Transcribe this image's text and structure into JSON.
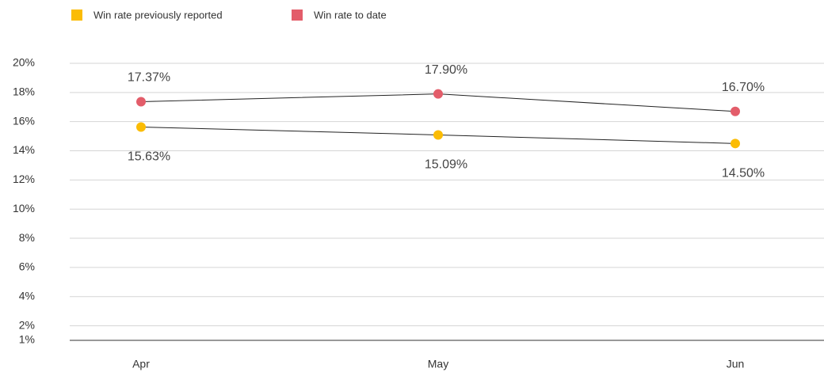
{
  "chart_data": {
    "type": "line",
    "categories": [
      "Apr",
      "May",
      "Jun"
    ],
    "series": [
      {
        "name": "Win rate previously reported",
        "color": "#fbbc04",
        "values": [
          15.63,
          15.09,
          14.5
        ],
        "value_labels": [
          "15.63%",
          "15.09%",
          "14.50%"
        ]
      },
      {
        "name": "Win rate to date",
        "color": "#e35d6a",
        "values": [
          17.37,
          17.9,
          16.7
        ],
        "value_labels": [
          "17.37%",
          "17.90%",
          "16.70%"
        ]
      }
    ],
    "ylim": [
      1,
      20
    ],
    "yticks": [
      {
        "value": 1,
        "label": "1%"
      },
      {
        "value": 2,
        "label": "2%"
      },
      {
        "value": 4,
        "label": "4%"
      },
      {
        "value": 6,
        "label": "6%"
      },
      {
        "value": 8,
        "label": "8%"
      },
      {
        "value": 10,
        "label": "10%"
      },
      {
        "value": 12,
        "label": "12%"
      },
      {
        "value": 14,
        "label": "14%"
      },
      {
        "value": 16,
        "label": "16%"
      },
      {
        "value": 18,
        "label": "18%"
      },
      {
        "value": 20,
        "label": "20%"
      }
    ],
    "grid": true,
    "legend": "top-left"
  }
}
